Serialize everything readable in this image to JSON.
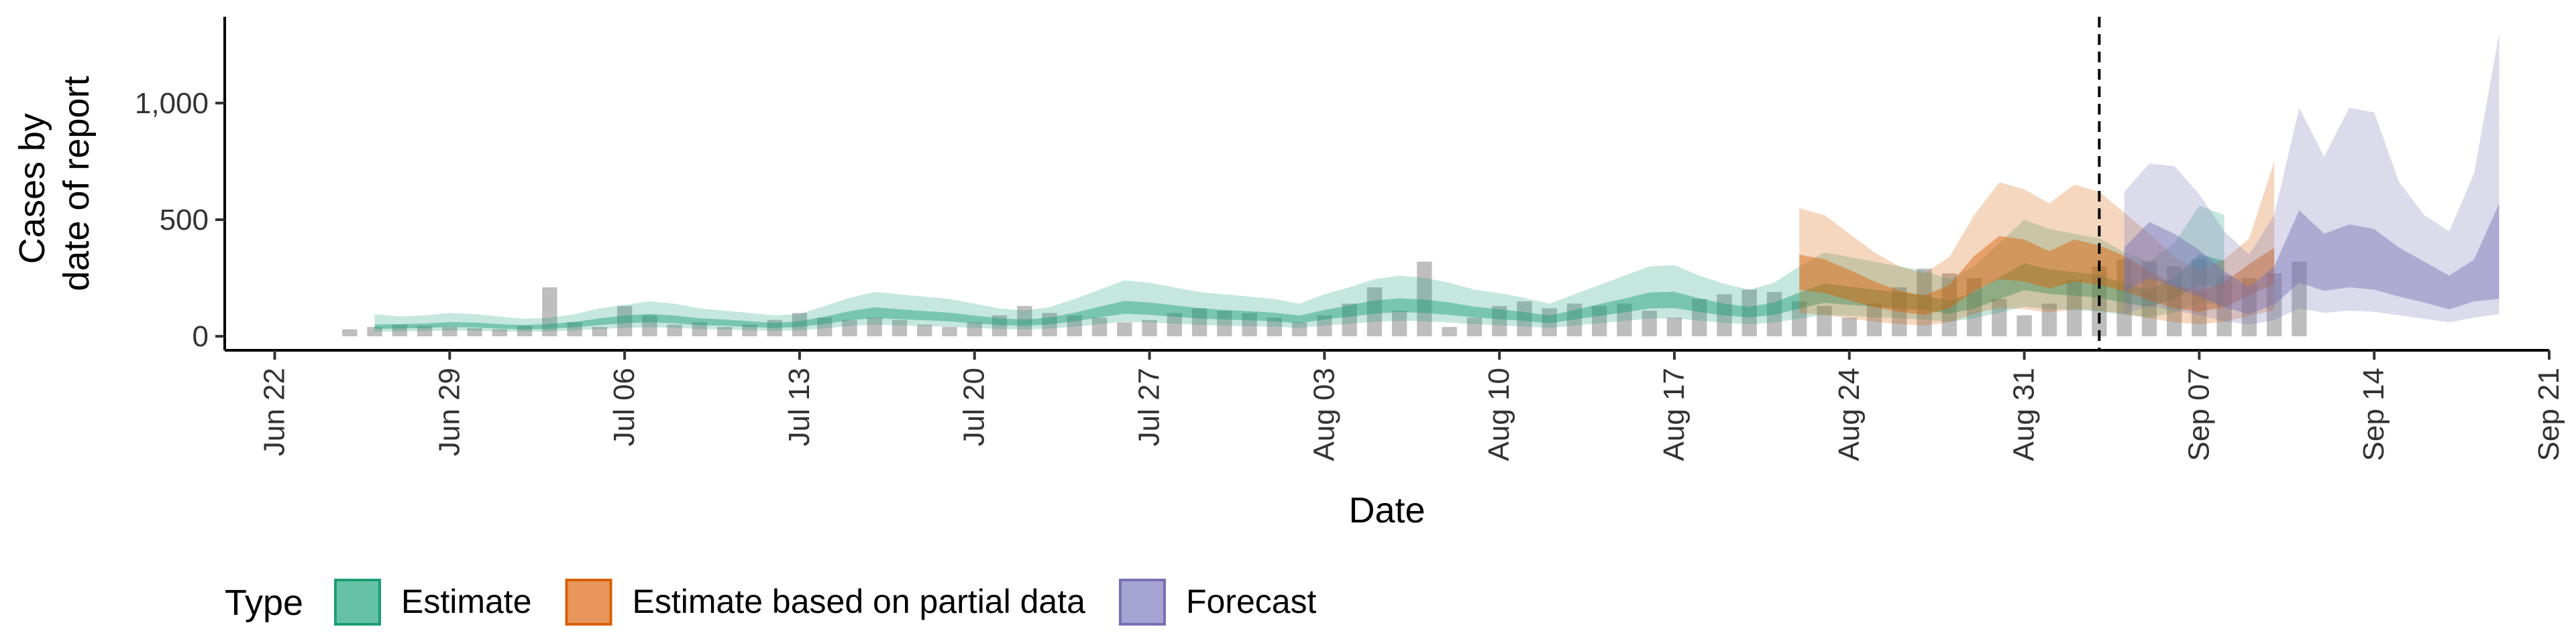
{
  "chart_data": {
    "type": "area",
    "xlabel": "Date",
    "ylabel_lines": [
      "Cases by",
      "date of report"
    ],
    "y_ticks": [
      0,
      500,
      1000
    ],
    "y_tick_labels": [
      "0",
      "500",
      "1,000"
    ],
    "ylim": [
      -60,
      1370
    ],
    "x_ticks": [
      "2020-06-22",
      "2020-06-29",
      "2020-07-06",
      "2020-07-13",
      "2020-07-20",
      "2020-07-27",
      "2020-08-03",
      "2020-08-10",
      "2020-08-17",
      "2020-08-24",
      "2020-08-31",
      "2020-09-07",
      "2020-09-14",
      "2020-09-21"
    ],
    "x_tick_labels": [
      "Jun 22",
      "Jun 29",
      "Jul 06",
      "Jul 13",
      "Jul 20",
      "Jul 27",
      "Aug 03",
      "Aug 10",
      "Aug 17",
      "Aug 24",
      "Aug 31",
      "Sep 07",
      "Sep 14",
      "Sep 21"
    ],
    "xlim": [
      "2020-06-20",
      "2020-09-21"
    ],
    "forecast_date": "2020-09-03",
    "legend": {
      "title": "Type",
      "position": "bottom",
      "entries": [
        {
          "label": "Estimate",
          "fill": "#66c2a5",
          "stroke": "#1b9e77"
        },
        {
          "label": "Estimate based on partial data",
          "fill": "#e9965c",
          "stroke": "#d95f02"
        },
        {
          "label": "Forecast",
          "fill": "#a6a4d3",
          "stroke": "#7570b3"
        }
      ]
    },
    "colors": {
      "Estimate": "#1b9e77",
      "Estimate based on partial data": "#d95f02",
      "Forecast": "#7570b3",
      "bars": "#b3b3b3"
    },
    "bars": {
      "start": "2020-06-25",
      "values": [
        30,
        40,
        50,
        45,
        40,
        35,
        30,
        45,
        210,
        60,
        40,
        130,
        90,
        50,
        60,
        40,
        50,
        70,
        100,
        80,
        70,
        80,
        70,
        50,
        40,
        60,
        90,
        130,
        100,
        90,
        80,
        60,
        70,
        100,
        120,
        110,
        100,
        80,
        60,
        90,
        140,
        210,
        110,
        320,
        40,
        80,
        130,
        150,
        120,
        140,
        130,
        140,
        110,
        80,
        160,
        180,
        200,
        190,
        150,
        130,
        80,
        140,
        210,
        290,
        270,
        250,
        160,
        90,
        140,
        240,
        300,
        330,
        320,
        300,
        330,
        260,
        250,
        270,
        320
      ]
    },
    "series": [
      {
        "name": "Estimate",
        "start": "2020-06-26",
        "median": [
          40,
          42,
          45,
          50,
          48,
          42,
          38,
          42,
          50,
          62,
          72,
          78,
          72,
          62,
          58,
          52,
          46,
          52,
          68,
          88,
          100,
          94,
          88,
          82,
          72,
          62,
          58,
          65,
          82,
          104,
          124,
          118,
          108,
          98,
          92,
          88,
          82,
          72,
          92,
          108,
          125,
          133,
          128,
          118,
          104,
          94,
          84,
          72,
          92,
          112,
          132,
          152,
          155,
          133,
          114,
          104,
          118,
          152,
          184,
          173,
          163,
          153,
          143,
          124,
          154,
          203,
          254,
          233,
          223,
          213,
          183,
          163,
          203,
          286,
          263
        ],
        "inner": [
          [
            32,
            50
          ],
          [
            33,
            52
          ],
          [
            36,
            55
          ],
          [
            40,
            61
          ],
          [
            38,
            59
          ],
          [
            33,
            52
          ],
          [
            29,
            48
          ],
          [
            32,
            53
          ],
          [
            39,
            62
          ],
          [
            48,
            77
          ],
          [
            56,
            89
          ],
          [
            61,
            96
          ],
          [
            56,
            89
          ],
          [
            48,
            77
          ],
          [
            45,
            72
          ],
          [
            40,
            65
          ],
          [
            36,
            57
          ],
          [
            40,
            65
          ],
          [
            53,
            84
          ],
          [
            69,
            108
          ],
          [
            78,
            124
          ],
          [
            73,
            116
          ],
          [
            69,
            108
          ],
          [
            64,
            101
          ],
          [
            56,
            89
          ],
          [
            48,
            77
          ],
          [
            45,
            72
          ],
          [
            51,
            80
          ],
          [
            64,
            101
          ],
          [
            81,
            127
          ],
          [
            97,
            152
          ],
          [
            92,
            145
          ],
          [
            84,
            133
          ],
          [
            76,
            121
          ],
          [
            72,
            113
          ],
          [
            69,
            108
          ],
          [
            64,
            101
          ],
          [
            56,
            89
          ],
          [
            72,
            113
          ],
          [
            84,
            133
          ],
          [
            97,
            154
          ],
          [
            104,
            163
          ],
          [
            100,
            158
          ],
          [
            92,
            145
          ],
          [
            81,
            127
          ],
          [
            73,
            116
          ],
          [
            66,
            104
          ],
          [
            56,
            89
          ],
          [
            72,
            113
          ],
          [
            87,
            138
          ],
          [
            103,
            162
          ],
          [
            119,
            188
          ],
          [
            121,
            191
          ],
          [
            104,
            163
          ],
          [
            89,
            140
          ],
          [
            81,
            127
          ],
          [
            92,
            145
          ],
          [
            119,
            188
          ],
          [
            144,
            227
          ],
          [
            135,
            213
          ],
          [
            127,
            200
          ],
          [
            119,
            188
          ],
          [
            112,
            176
          ],
          [
            97,
            152
          ],
          [
            120,
            189
          ],
          [
            159,
            251
          ],
          [
            198,
            313
          ],
          [
            182,
            287
          ],
          [
            174,
            275
          ],
          [
            166,
            262
          ],
          [
            143,
            226
          ],
          [
            127,
            200
          ],
          [
            159,
            251
          ],
          [
            223,
            352
          ],
          [
            205,
            324
          ]
        ],
        "outer": [
          [
            20,
            95
          ],
          [
            21,
            85
          ],
          [
            22,
            90
          ],
          [
            25,
            100
          ],
          [
            24,
            95
          ],
          [
            21,
            85
          ],
          [
            19,
            75
          ],
          [
            21,
            80
          ],
          [
            25,
            95
          ],
          [
            31,
            120
          ],
          [
            36,
            135
          ],
          [
            39,
            150
          ],
          [
            36,
            140
          ],
          [
            31,
            120
          ],
          [
            29,
            110
          ],
          [
            26,
            100
          ],
          [
            23,
            90
          ],
          [
            26,
            95
          ],
          [
            34,
            130
          ],
          [
            44,
            165
          ],
          [
            50,
            190
          ],
          [
            47,
            180
          ],
          [
            44,
            170
          ],
          [
            41,
            160
          ],
          [
            36,
            140
          ],
          [
            31,
            120
          ],
          [
            29,
            110
          ],
          [
            33,
            125
          ],
          [
            41,
            160
          ],
          [
            52,
            200
          ],
          [
            62,
            240
          ],
          [
            59,
            230
          ],
          [
            54,
            210
          ],
          [
            49,
            190
          ],
          [
            46,
            180
          ],
          [
            44,
            170
          ],
          [
            41,
            160
          ],
          [
            36,
            140
          ],
          [
            46,
            180
          ],
          [
            54,
            210
          ],
          [
            62,
            245
          ],
          [
            67,
            260
          ],
          [
            64,
            250
          ],
          [
            59,
            230
          ],
          [
            52,
            200
          ],
          [
            47,
            185
          ],
          [
            42,
            165
          ],
          [
            36,
            140
          ],
          [
            46,
            180
          ],
          [
            56,
            220
          ],
          [
            66,
            260
          ],
          [
            76,
            300
          ],
          [
            77,
            305
          ],
          [
            67,
            260
          ],
          [
            57,
            225
          ],
          [
            52,
            200
          ],
          [
            59,
            230
          ],
          [
            76,
            300
          ],
          [
            92,
            360
          ],
          [
            87,
            340
          ],
          [
            82,
            320
          ],
          [
            77,
            300
          ],
          [
            72,
            280
          ],
          [
            62,
            245
          ],
          [
            77,
            300
          ],
          [
            102,
            400
          ],
          [
            127,
            500
          ],
          [
            117,
            460
          ],
          [
            112,
            440
          ],
          [
            107,
            420
          ],
          [
            92,
            360
          ],
          [
            82,
            320
          ],
          [
            102,
            400
          ],
          [
            143,
            560
          ],
          [
            132,
            520
          ]
        ]
      },
      {
        "name": "Estimate based on partial data",
        "start": "2020-08-22",
        "median": [
          270,
          250,
          210,
          170,
          140,
          125,
          160,
          260,
          330,
          320,
          280,
          320,
          300,
          260,
          210,
          165,
          140,
          170,
          240,
          300
        ],
        "inner": [
          [
            200,
            350
          ],
          [
            185,
            330
          ],
          [
            155,
            285
          ],
          [
            125,
            235
          ],
          [
            105,
            195
          ],
          [
            92,
            175
          ],
          [
            120,
            220
          ],
          [
            195,
            345
          ],
          [
            245,
            430
          ],
          [
            235,
            415
          ],
          [
            205,
            365
          ],
          [
            235,
            415
          ],
          [
            220,
            390
          ],
          [
            195,
            345
          ],
          [
            155,
            280
          ],
          [
            120,
            220
          ],
          [
            105,
            195
          ],
          [
            125,
            230
          ],
          [
            175,
            310
          ],
          [
            225,
            380
          ]
        ],
        "outer": [
          [
            100,
            550
          ],
          [
            92,
            520
          ],
          [
            77,
            440
          ],
          [
            62,
            360
          ],
          [
            52,
            300
          ],
          [
            46,
            270
          ],
          [
            60,
            340
          ],
          [
            97,
            520
          ],
          [
            122,
            660
          ],
          [
            117,
            630
          ],
          [
            102,
            570
          ],
          [
            117,
            650
          ],
          [
            110,
            620
          ],
          [
            97,
            530
          ],
          [
            77,
            440
          ],
          [
            60,
            340
          ],
          [
            52,
            280
          ],
          [
            62,
            330
          ],
          [
            87,
            420
          ],
          [
            112,
            750
          ]
        ]
      },
      {
        "name": "Forecast",
        "start": "2020-09-04",
        "median": [
          280,
          370,
          320,
          260,
          190,
          145,
          200,
          360,
          300,
          330,
          310,
          260,
          220,
          180,
          230,
          260
        ],
        "inner": [
          [
            190,
            380
          ],
          [
            250,
            490
          ],
          [
            210,
            440
          ],
          [
            170,
            370
          ],
          [
            125,
            280
          ],
          [
            95,
            210
          ],
          [
            135,
            300
          ],
          [
            230,
            540
          ],
          [
            195,
            440
          ],
          [
            210,
            480
          ],
          [
            200,
            460
          ],
          [
            170,
            380
          ],
          [
            145,
            320
          ],
          [
            115,
            260
          ],
          [
            150,
            330
          ],
          [
            160,
            570
          ]
        ],
        "outer": [
          [
            95,
            620
          ],
          [
            130,
            740
          ],
          [
            110,
            730
          ],
          [
            90,
            610
          ],
          [
            65,
            450
          ],
          [
            50,
            350
          ],
          [
            70,
            520
          ],
          [
            120,
            980
          ],
          [
            100,
            770
          ],
          [
            110,
            980
          ],
          [
            105,
            960
          ],
          [
            90,
            660
          ],
          [
            75,
            520
          ],
          [
            60,
            450
          ],
          [
            80,
            700
          ],
          [
            95,
            1300
          ]
        ]
      }
    ]
  }
}
